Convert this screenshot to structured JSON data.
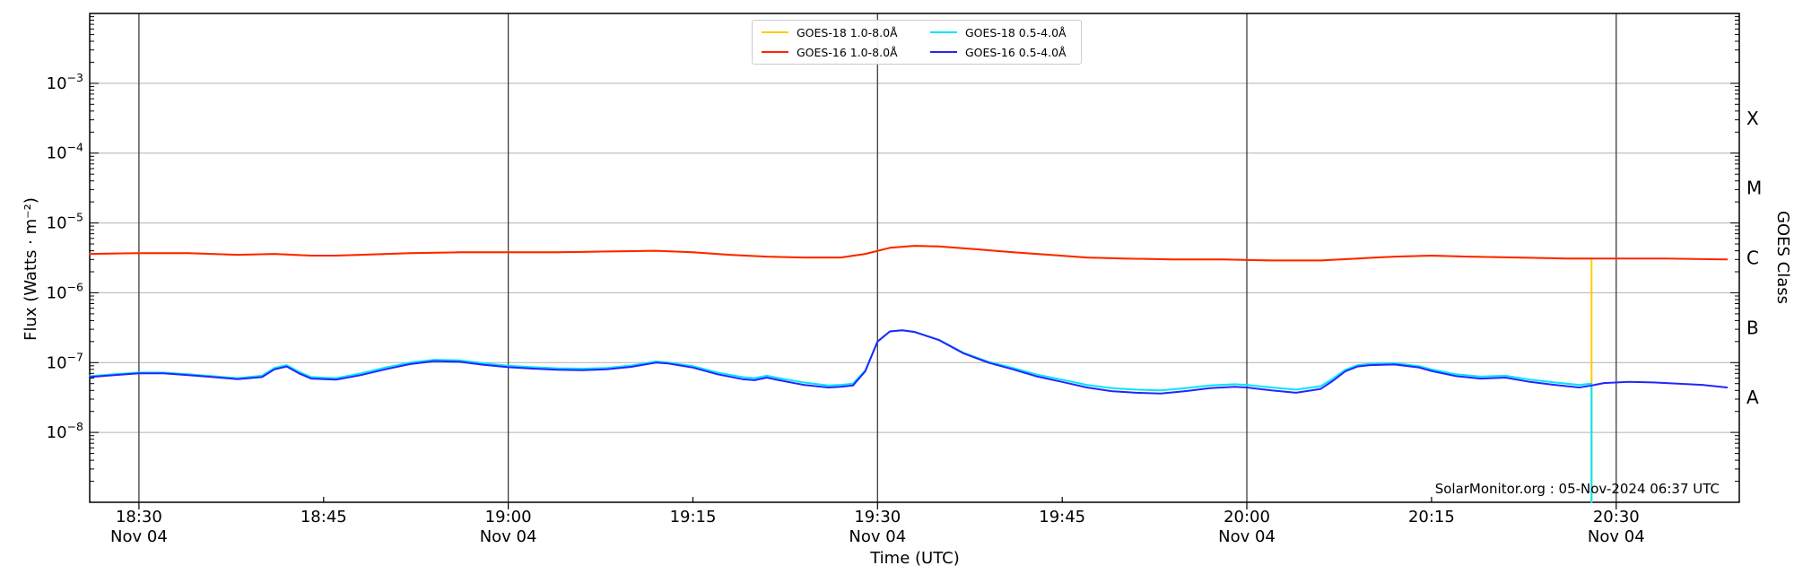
{
  "chart_data": {
    "type": "line",
    "title": "",
    "xlabel": "Time (UTC)",
    "ylabel": "Flux (Watts · m⁻²)",
    "ylabel_right": "GOES Class",
    "watermark": "SolarMonitor.org : 05-Nov-2024 06:37 UTC",
    "x_date": "Nov 04",
    "x_range": [
      "18:26",
      "20:40"
    ],
    "y_scale": "log",
    "y_range": [
      1e-09,
      0.01
    ],
    "grid": {
      "vertical_dark_color": "#3c3c3c",
      "horizontal_light_color": "#b0b0b0"
    },
    "x_major_gridlines": [
      "18:30",
      "19:00",
      "19:30",
      "20:00",
      "20:30"
    ],
    "x_ticks": [
      {
        "time": "18:30",
        "date": "Nov 04"
      },
      {
        "time": "18:45"
      },
      {
        "time": "19:00",
        "date": "Nov 04"
      },
      {
        "time": "19:15"
      },
      {
        "time": "19:30",
        "date": "Nov 04"
      },
      {
        "time": "19:45"
      },
      {
        "time": "20:00",
        "date": "Nov 04"
      },
      {
        "time": "20:15"
      },
      {
        "time": "20:30",
        "date": "Nov 04"
      }
    ],
    "y_ticks": [
      {
        "exp": -3,
        "base": "10",
        "sup": "−3"
      },
      {
        "exp": -4,
        "base": "10",
        "sup": "−4"
      },
      {
        "exp": -5,
        "base": "10",
        "sup": "−5"
      },
      {
        "exp": -6,
        "base": "10",
        "sup": "−6"
      },
      {
        "exp": -7,
        "base": "10",
        "sup": "−7"
      },
      {
        "exp": -8,
        "base": "10",
        "sup": "−8"
      }
    ],
    "goes_classes": [
      {
        "label": "X",
        "log_center": -3.5
      },
      {
        "label": "M",
        "log_center": -4.5
      },
      {
        "label": "C",
        "log_center": -5.5
      },
      {
        "label": "B",
        "log_center": -6.5
      },
      {
        "label": "A",
        "log_center": -7.5
      }
    ],
    "series": [
      {
        "name": "GOES-18 1.0-8.0Å",
        "color": "#ffcc00",
        "points": [
          [
            "18:26",
            3.6e-06
          ],
          [
            "18:30",
            3.7e-06
          ],
          [
            "18:34",
            3.7e-06
          ],
          [
            "18:38",
            3.5e-06
          ],
          [
            "18:41",
            3.6e-06
          ],
          [
            "18:44",
            3.4e-06
          ],
          [
            "18:46",
            3.4e-06
          ],
          [
            "18:48",
            3.5e-06
          ],
          [
            "18:52",
            3.7e-06
          ],
          [
            "18:56",
            3.8e-06
          ],
          [
            "19:00",
            3.8e-06
          ],
          [
            "19:04",
            3.8e-06
          ],
          [
            "19:08",
            3.9e-06
          ],
          [
            "19:12",
            4e-06
          ],
          [
            "19:15",
            3.8e-06
          ],
          [
            "19:18",
            3.5e-06
          ],
          [
            "19:21",
            3.3e-06
          ],
          [
            "19:24",
            3.2e-06
          ],
          [
            "19:27",
            3.2e-06
          ],
          [
            "19:29",
            3.6e-06
          ],
          [
            "19:31",
            4.4e-06
          ],
          [
            "19:33",
            4.7e-06
          ],
          [
            "19:35",
            4.6e-06
          ],
          [
            "19:38",
            4.2e-06
          ],
          [
            "19:41",
            3.8e-06
          ],
          [
            "19:44",
            3.5e-06
          ],
          [
            "19:47",
            3.2e-06
          ],
          [
            "19:50",
            3.1e-06
          ],
          [
            "19:54",
            3e-06
          ],
          [
            "19:58",
            3e-06
          ],
          [
            "20:02",
            2.9e-06
          ],
          [
            "20:06",
            2.9e-06
          ],
          [
            "20:09",
            3.1e-06
          ],
          [
            "20:12",
            3.3e-06
          ],
          [
            "20:15",
            3.4e-06
          ],
          [
            "20:18",
            3.3e-06
          ],
          [
            "20:22",
            3.2e-06
          ],
          [
            "20:26",
            3.1e-06
          ],
          [
            "20:28",
            3.1e-06
          ],
          [
            "20:28",
            1e-09
          ]
        ]
      },
      {
        "name": "GOES-16 1.0-8.0Å",
        "color": "#ff2400",
        "points": [
          [
            "18:26",
            3.6e-06
          ],
          [
            "18:30",
            3.7e-06
          ],
          [
            "18:34",
            3.7e-06
          ],
          [
            "18:38",
            3.5e-06
          ],
          [
            "18:41",
            3.6e-06
          ],
          [
            "18:44",
            3.4e-06
          ],
          [
            "18:46",
            3.4e-06
          ],
          [
            "18:48",
            3.5e-06
          ],
          [
            "18:52",
            3.7e-06
          ],
          [
            "18:56",
            3.8e-06
          ],
          [
            "19:00",
            3.8e-06
          ],
          [
            "19:04",
            3.8e-06
          ],
          [
            "19:08",
            3.9e-06
          ],
          [
            "19:12",
            4e-06
          ],
          [
            "19:15",
            3.8e-06
          ],
          [
            "19:18",
            3.5e-06
          ],
          [
            "19:21",
            3.3e-06
          ],
          [
            "19:24",
            3.2e-06
          ],
          [
            "19:27",
            3.2e-06
          ],
          [
            "19:29",
            3.6e-06
          ],
          [
            "19:31",
            4.4e-06
          ],
          [
            "19:33",
            4.7e-06
          ],
          [
            "19:35",
            4.6e-06
          ],
          [
            "19:38",
            4.2e-06
          ],
          [
            "19:41",
            3.8e-06
          ],
          [
            "19:44",
            3.5e-06
          ],
          [
            "19:47",
            3.2e-06
          ],
          [
            "19:50",
            3.1e-06
          ],
          [
            "19:54",
            3e-06
          ],
          [
            "19:58",
            3e-06
          ],
          [
            "20:02",
            2.9e-06
          ],
          [
            "20:06",
            2.9e-06
          ],
          [
            "20:09",
            3.1e-06
          ],
          [
            "20:12",
            3.3e-06
          ],
          [
            "20:15",
            3.4e-06
          ],
          [
            "20:18",
            3.3e-06
          ],
          [
            "20:22",
            3.2e-06
          ],
          [
            "20:26",
            3.1e-06
          ],
          [
            "20:30",
            3.1e-06
          ],
          [
            "20:34",
            3.1e-06
          ],
          [
            "20:39",
            3e-06
          ]
        ]
      },
      {
        "name": "GOES-18 0.5-4.0Å",
        "color": "#00e5ff",
        "points": [
          [
            "18:26",
            6.4e-08
          ],
          [
            "18:28",
            6.8e-08
          ],
          [
            "18:30",
            7.2e-08
          ],
          [
            "18:32",
            7.2e-08
          ],
          [
            "18:34",
            6.8e-08
          ],
          [
            "18:36",
            6.4e-08
          ],
          [
            "18:38",
            6e-08
          ],
          [
            "18:40",
            6.5e-08
          ],
          [
            "18:41",
            8.4e-08
          ],
          [
            "18:42",
            9.2e-08
          ],
          [
            "18:43",
            7.4e-08
          ],
          [
            "18:44",
            6.2e-08
          ],
          [
            "18:46",
            6e-08
          ],
          [
            "18:48",
            7e-08
          ],
          [
            "18:50",
            8.5e-08
          ],
          [
            "18:52",
            1e-07
          ],
          [
            "18:54",
            1.1e-07
          ],
          [
            "18:56",
            1.08e-07
          ],
          [
            "18:58",
            9.8e-08
          ],
          [
            "19:00",
            9e-08
          ],
          [
            "19:02",
            8.6e-08
          ],
          [
            "19:04",
            8.3e-08
          ],
          [
            "19:06",
            8.2e-08
          ],
          [
            "19:08",
            8.4e-08
          ],
          [
            "19:10",
            9.1e-08
          ],
          [
            "19:12",
            1.04e-07
          ],
          [
            "19:13",
            1e-07
          ],
          [
            "19:15",
            8.9e-08
          ],
          [
            "19:17",
            7.2e-08
          ],
          [
            "19:19",
            6.2e-08
          ],
          [
            "19:20",
            6e-08
          ],
          [
            "19:21",
            6.5e-08
          ],
          [
            "19:22",
            6e-08
          ],
          [
            "19:24",
            5.2e-08
          ],
          [
            "19:26",
            4.7e-08
          ],
          [
            "19:27",
            4.8e-08
          ],
          [
            "19:28",
            5e-08
          ],
          [
            "19:29",
            7.7e-08
          ],
          [
            "19:30",
            2e-07
          ],
          [
            "19:31",
            2.8e-07
          ],
          [
            "19:32",
            2.9e-07
          ],
          [
            "19:33",
            2.76e-07
          ],
          [
            "19:35",
            2.12e-07
          ],
          [
            "19:37",
            1.38e-07
          ],
          [
            "19:39",
            1.03e-07
          ],
          [
            "19:41",
            8.4e-08
          ],
          [
            "19:43",
            6.7e-08
          ],
          [
            "19:45",
            5.7e-08
          ],
          [
            "19:47",
            4.8e-08
          ],
          [
            "19:49",
            4.3e-08
          ],
          [
            "19:51",
            4.1e-08
          ],
          [
            "19:53",
            4e-08
          ],
          [
            "19:55",
            4.3e-08
          ],
          [
            "19:57",
            4.7e-08
          ],
          [
            "19:59",
            4.9e-08
          ],
          [
            "20:00",
            4.8e-08
          ],
          [
            "20:02",
            4.4e-08
          ],
          [
            "20:04",
            4.1e-08
          ],
          [
            "20:06",
            4.6e-08
          ],
          [
            "20:07",
            5.9e-08
          ],
          [
            "20:08",
            7.9e-08
          ],
          [
            "20:09",
            9.2e-08
          ],
          [
            "20:10",
            9.6e-08
          ],
          [
            "20:12",
            9.8e-08
          ],
          [
            "20:14",
            8.9e-08
          ],
          [
            "20:15",
            8e-08
          ],
          [
            "20:17",
            6.8e-08
          ],
          [
            "20:19",
            6.3e-08
          ],
          [
            "20:21",
            6.5e-08
          ],
          [
            "20:23",
            5.7e-08
          ],
          [
            "20:25",
            5.2e-08
          ],
          [
            "20:27",
            4.8e-08
          ],
          [
            "20:28",
            5e-08
          ],
          [
            "20:28",
            1e-09
          ]
        ]
      },
      {
        "name": "GOES-16 0.5-4.0Å",
        "color": "#2424ff",
        "points": [
          [
            "18:26",
            6.2e-08
          ],
          [
            "18:28",
            6.6e-08
          ],
          [
            "18:30",
            7e-08
          ],
          [
            "18:32",
            7e-08
          ],
          [
            "18:34",
            6.6e-08
          ],
          [
            "18:36",
            6.2e-08
          ],
          [
            "18:38",
            5.8e-08
          ],
          [
            "18:40",
            6.2e-08
          ],
          [
            "18:41",
            8e-08
          ],
          [
            "18:42",
            8.8e-08
          ],
          [
            "18:43",
            7e-08
          ],
          [
            "18:44",
            5.9e-08
          ],
          [
            "18:46",
            5.7e-08
          ],
          [
            "18:48",
            6.6e-08
          ],
          [
            "18:50",
            8e-08
          ],
          [
            "18:52",
            9.5e-08
          ],
          [
            "18:54",
            1.05e-07
          ],
          [
            "18:56",
            1.03e-07
          ],
          [
            "18:58",
            9.3e-08
          ],
          [
            "19:00",
            8.6e-08
          ],
          [
            "19:02",
            8.2e-08
          ],
          [
            "19:04",
            7.9e-08
          ],
          [
            "19:06",
            7.8e-08
          ],
          [
            "19:08",
            8e-08
          ],
          [
            "19:10",
            8.7e-08
          ],
          [
            "19:12",
            1e-07
          ],
          [
            "19:13",
            9.7e-08
          ],
          [
            "19:15",
            8.5e-08
          ],
          [
            "19:17",
            6.8e-08
          ],
          [
            "19:19",
            5.8e-08
          ],
          [
            "19:20",
            5.6e-08
          ],
          [
            "19:21",
            6.1e-08
          ],
          [
            "19:22",
            5.6e-08
          ],
          [
            "19:24",
            4.8e-08
          ],
          [
            "19:26",
            4.4e-08
          ],
          [
            "19:27",
            4.5e-08
          ],
          [
            "19:28",
            4.7e-08
          ],
          [
            "19:29",
            7.5e-08
          ],
          [
            "19:30",
            2e-07
          ],
          [
            "19:31",
            2.8e-07
          ],
          [
            "19:32",
            2.9e-07
          ],
          [
            "19:33",
            2.75e-07
          ],
          [
            "19:35",
            2.1e-07
          ],
          [
            "19:37",
            1.35e-07
          ],
          [
            "19:39",
            1e-07
          ],
          [
            "19:41",
            8e-08
          ],
          [
            "19:43",
            6.3e-08
          ],
          [
            "19:45",
            5.3e-08
          ],
          [
            "19:47",
            4.4e-08
          ],
          [
            "19:49",
            3.9e-08
          ],
          [
            "19:51",
            3.7e-08
          ],
          [
            "19:53",
            3.6e-08
          ],
          [
            "19:55",
            3.9e-08
          ],
          [
            "19:57",
            4.3e-08
          ],
          [
            "19:59",
            4.5e-08
          ],
          [
            "20:00",
            4.4e-08
          ],
          [
            "20:02",
            4e-08
          ],
          [
            "20:04",
            3.7e-08
          ],
          [
            "20:06",
            4.2e-08
          ],
          [
            "20:07",
            5.5e-08
          ],
          [
            "20:08",
            7.5e-08
          ],
          [
            "20:09",
            8.8e-08
          ],
          [
            "20:10",
            9.2e-08
          ],
          [
            "20:12",
            9.4e-08
          ],
          [
            "20:14",
            8.5e-08
          ],
          [
            "20:15",
            7.6e-08
          ],
          [
            "20:17",
            6.4e-08
          ],
          [
            "20:19",
            5.9e-08
          ],
          [
            "20:21",
            6.1e-08
          ],
          [
            "20:23",
            5.3e-08
          ],
          [
            "20:25",
            4.8e-08
          ],
          [
            "20:27",
            4.4e-08
          ],
          [
            "20:28",
            4.7e-08
          ],
          [
            "20:29",
            5.1e-08
          ],
          [
            "20:31",
            5.3e-08
          ],
          [
            "20:33",
            5.2e-08
          ],
          [
            "20:35",
            5e-08
          ],
          [
            "20:37",
            4.8e-08
          ],
          [
            "20:39",
            4.4e-08
          ]
        ]
      }
    ]
  }
}
